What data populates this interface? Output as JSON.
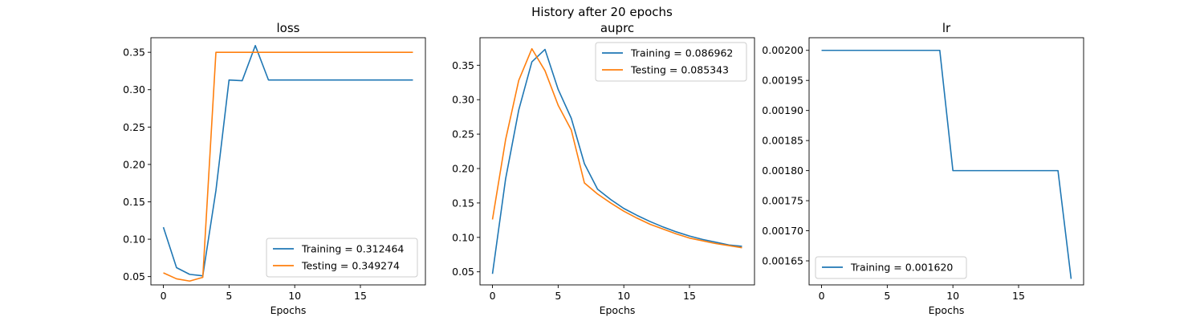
{
  "figure": {
    "suptitle": "History after 20 epochs"
  },
  "colors": {
    "training": "#1f77b4",
    "testing": "#ff7f0e"
  },
  "chart_data": [
    {
      "type": "line",
      "title": "loss",
      "xlabel": "Epochs",
      "ylabel": "",
      "xlim": [
        -0.95,
        19.95
      ],
      "ylim": [
        0.0389,
        0.3695
      ],
      "xticks": [
        0,
        5,
        10,
        15
      ],
      "yticks": [
        0.05,
        0.1,
        0.15,
        0.2,
        0.25,
        0.3,
        0.35
      ],
      "ytick_decimals": 2,
      "legend_position": "lower-right",
      "x": [
        0,
        1,
        2,
        3,
        4,
        5,
        6,
        7,
        8,
        9,
        10,
        11,
        12,
        13,
        14,
        15,
        16,
        17,
        18,
        19
      ],
      "series": [
        {
          "name": "Training = 0.312464",
          "color": "#1f77b4",
          "values": [
            0.116,
            0.062,
            0.053,
            0.051,
            0.165,
            0.313,
            0.312,
            0.359,
            0.313,
            0.313,
            0.313,
            0.313,
            0.313,
            0.313,
            0.313,
            0.313,
            0.313,
            0.313,
            0.313,
            0.313
          ]
        },
        {
          "name": "Testing = 0.349274",
          "color": "#ff7f0e",
          "values": [
            0.055,
            0.047,
            0.044,
            0.049,
            0.35,
            0.35,
            0.35,
            0.35,
            0.35,
            0.35,
            0.35,
            0.35,
            0.35,
            0.35,
            0.35,
            0.35,
            0.35,
            0.35,
            0.35,
            0.35
          ]
        }
      ]
    },
    {
      "type": "line",
      "title": "auprc",
      "xlabel": "Epochs",
      "ylabel": "",
      "xlim": [
        -0.95,
        19.95
      ],
      "ylim": [
        0.031,
        0.39
      ],
      "xticks": [
        0,
        5,
        10,
        15
      ],
      "yticks": [
        0.05,
        0.1,
        0.15,
        0.2,
        0.25,
        0.3,
        0.35
      ],
      "ytick_decimals": 2,
      "legend_position": "upper-right",
      "x": [
        0,
        1,
        2,
        3,
        4,
        5,
        6,
        7,
        8,
        9,
        10,
        11,
        12,
        13,
        14,
        15,
        16,
        17,
        18,
        19
      ],
      "series": [
        {
          "name": "Training = 0.086962",
          "color": "#1f77b4",
          "values": [
            0.047,
            0.185,
            0.285,
            0.355,
            0.373,
            0.315,
            0.273,
            0.207,
            0.17,
            0.155,
            0.142,
            0.132,
            0.123,
            0.115,
            0.108,
            0.102,
            0.097,
            0.093,
            0.089,
            0.087
          ]
        },
        {
          "name": "Testing = 0.085343",
          "color": "#ff7f0e",
          "values": [
            0.126,
            0.242,
            0.328,
            0.374,
            0.342,
            0.292,
            0.256,
            0.179,
            0.163,
            0.15,
            0.138,
            0.128,
            0.119,
            0.112,
            0.105,
            0.099,
            0.095,
            0.091,
            0.088,
            0.085
          ]
        }
      ]
    },
    {
      "type": "line",
      "title": "lr",
      "xlabel": "Epochs",
      "ylabel": "",
      "xlim": [
        -0.95,
        19.95
      ],
      "ylim": [
        0.00161,
        0.002021
      ],
      "xticks": [
        0,
        5,
        10,
        15
      ],
      "yticks": [
        0.00165,
        0.0017,
        0.00175,
        0.0018,
        0.00185,
        0.0019,
        0.00195,
        0.002
      ],
      "ytick_decimals": 5,
      "legend_position": "lower-left",
      "x": [
        0,
        1,
        2,
        3,
        4,
        5,
        6,
        7,
        8,
        9,
        10,
        11,
        12,
        13,
        14,
        15,
        16,
        17,
        18,
        19
      ],
      "series": [
        {
          "name": "Training = 0.001620",
          "color": "#1f77b4",
          "values": [
            0.002,
            0.002,
            0.002,
            0.002,
            0.002,
            0.002,
            0.002,
            0.002,
            0.002,
            0.002,
            0.0018,
            0.0018,
            0.0018,
            0.0018,
            0.0018,
            0.0018,
            0.0018,
            0.0018,
            0.0018,
            0.00162
          ]
        }
      ]
    }
  ]
}
